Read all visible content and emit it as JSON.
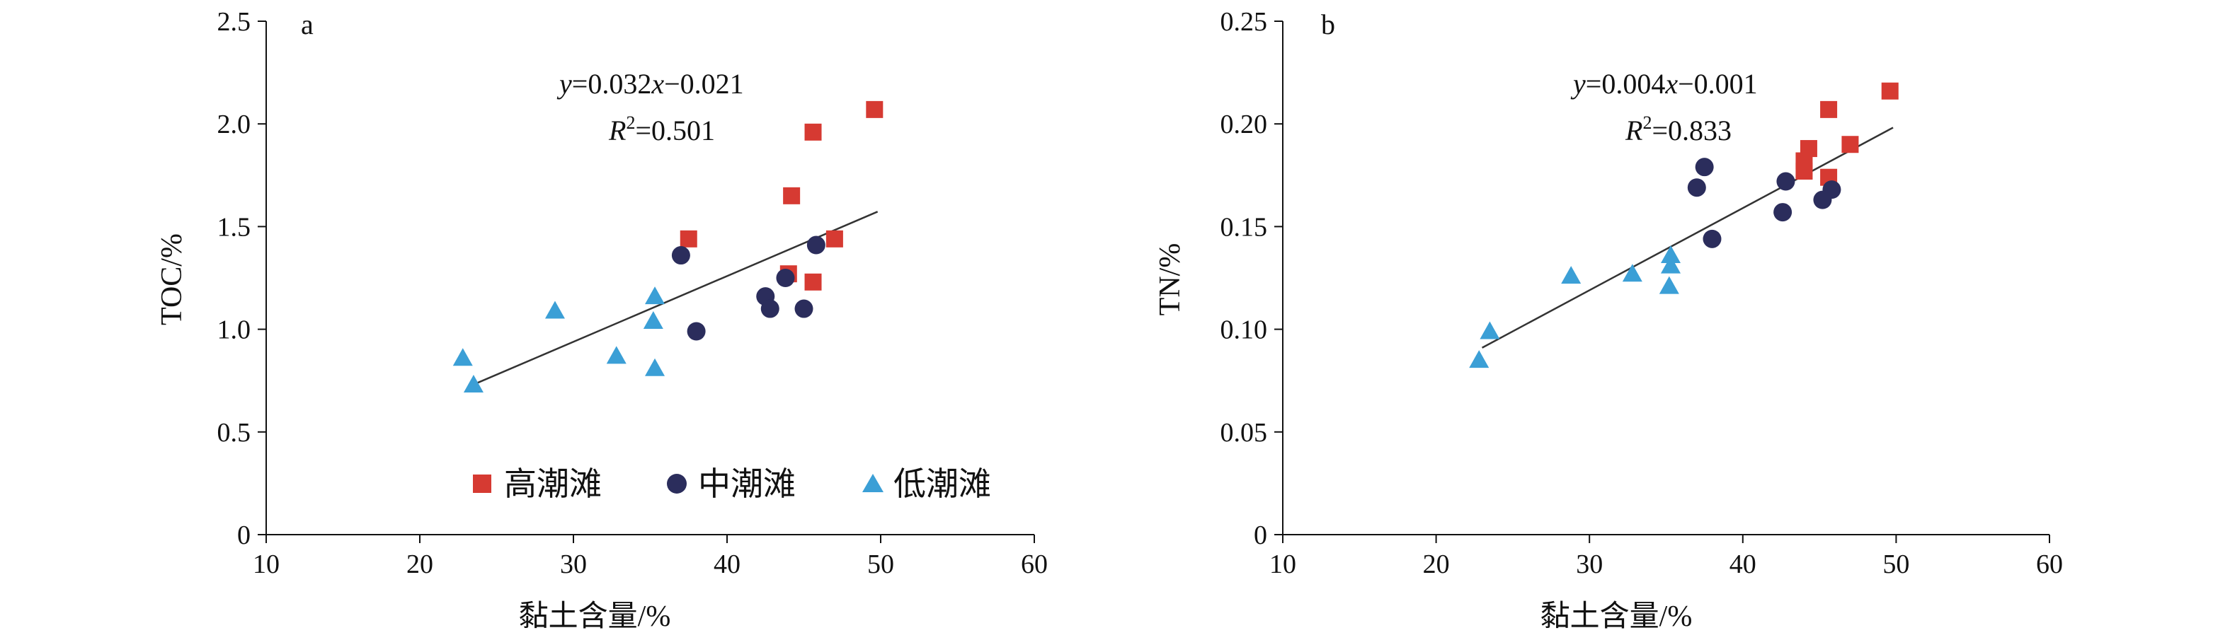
{
  "colors": {
    "high": "#d63a32",
    "mid": "#2b2d5c",
    "low": "#3b9fd6",
    "axis": "#111111",
    "fit_line": "#333333"
  },
  "legend": {
    "high": "高潮滩",
    "mid": "中潮滩",
    "low": "低潮滩"
  },
  "chart_data": [
    {
      "type": "scatter",
      "panel": "a",
      "xlabel": "黏土含量/%",
      "ylabel": "TOC/%",
      "xlim": [
        10,
        60
      ],
      "ylim": [
        0,
        2.5
      ],
      "xticks": [
        "10",
        "20",
        "30",
        "40",
        "50",
        "60"
      ],
      "yticks": [
        "0",
        "0.5",
        "1.0",
        "1.5",
        "2.0",
        "2.5"
      ],
      "equation": {
        "y": "y",
        "body": "=0.032",
        "x": "x",
        "rest": "−0.021"
      },
      "r2": {
        "r": "R",
        "sup": "2",
        "val": "=0.501"
      },
      "fit": {
        "slope": 0.032,
        "intercept": -0.021,
        "x_range": [
          23.3,
          49.8
        ]
      },
      "series": [
        {
          "name": "高潮滩",
          "marker": "square",
          "points": [
            [
              37.5,
              1.44
            ],
            [
              44.2,
              1.65
            ],
            [
              45.6,
              1.96
            ],
            [
              49.6,
              2.07
            ],
            [
              44.0,
              1.27
            ],
            [
              45.6,
              1.23
            ],
            [
              47.0,
              1.44
            ]
          ]
        },
        {
          "name": "中潮滩",
          "marker": "circle",
          "points": [
            [
              37.0,
              1.36
            ],
            [
              38.0,
              0.99
            ],
            [
              42.5,
              1.16
            ],
            [
              42.8,
              1.1
            ],
            [
              43.8,
              1.25
            ],
            [
              45.0,
              1.1
            ],
            [
              45.8,
              1.41
            ]
          ]
        },
        {
          "name": "低潮滩",
          "marker": "triangle",
          "points": [
            [
              22.8,
              0.86
            ],
            [
              23.5,
              0.73
            ],
            [
              28.8,
              1.09
            ],
            [
              32.8,
              0.87
            ],
            [
              35.2,
              1.04
            ],
            [
              35.3,
              1.16
            ],
            [
              35.3,
              0.81
            ]
          ]
        }
      ]
    },
    {
      "type": "scatter",
      "panel": "b",
      "xlabel": "黏土含量/%",
      "ylabel": "TN/%",
      "xlim": [
        10,
        60
      ],
      "ylim": [
        0,
        0.25
      ],
      "xticks": [
        "10",
        "20",
        "30",
        "40",
        "50",
        "60"
      ],
      "yticks": [
        "0",
        "0.05",
        "0.10",
        "0.15",
        "0.20",
        "0.25"
      ],
      "equation": {
        "y": "y",
        "body": "=0.004",
        "x": "x",
        "rest": "−0.001"
      },
      "r2": {
        "r": "R",
        "sup": "2",
        "val": "=0.833"
      },
      "fit": {
        "slope": 0.004,
        "intercept": -0.001,
        "x_range": [
          23.0,
          49.8
        ]
      },
      "series": [
        {
          "name": "高潮滩",
          "marker": "square",
          "points": [
            [
              49.6,
              0.216
            ],
            [
              45.6,
              0.207
            ],
            [
              44.3,
              0.188
            ],
            [
              47.0,
              0.19
            ],
            [
              44.0,
              0.182
            ],
            [
              44.0,
              0.177
            ],
            [
              45.6,
              0.174
            ]
          ]
        },
        {
          "name": "中潮滩",
          "marker": "circle",
          "points": [
            [
              37.5,
              0.179
            ],
            [
              37.0,
              0.169
            ],
            [
              42.8,
              0.172
            ],
            [
              45.8,
              0.168
            ],
            [
              45.2,
              0.163
            ],
            [
              42.6,
              0.157
            ],
            [
              38.0,
              0.144
            ]
          ]
        },
        {
          "name": "低潮滩",
          "marker": "triangle",
          "points": [
            [
              22.8,
              0.085
            ],
            [
              23.5,
              0.099
            ],
            [
              28.8,
              0.126
            ],
            [
              32.8,
              0.127
            ],
            [
              35.3,
              0.136
            ],
            [
              35.3,
              0.131
            ],
            [
              35.2,
              0.121
            ]
          ]
        }
      ]
    }
  ]
}
